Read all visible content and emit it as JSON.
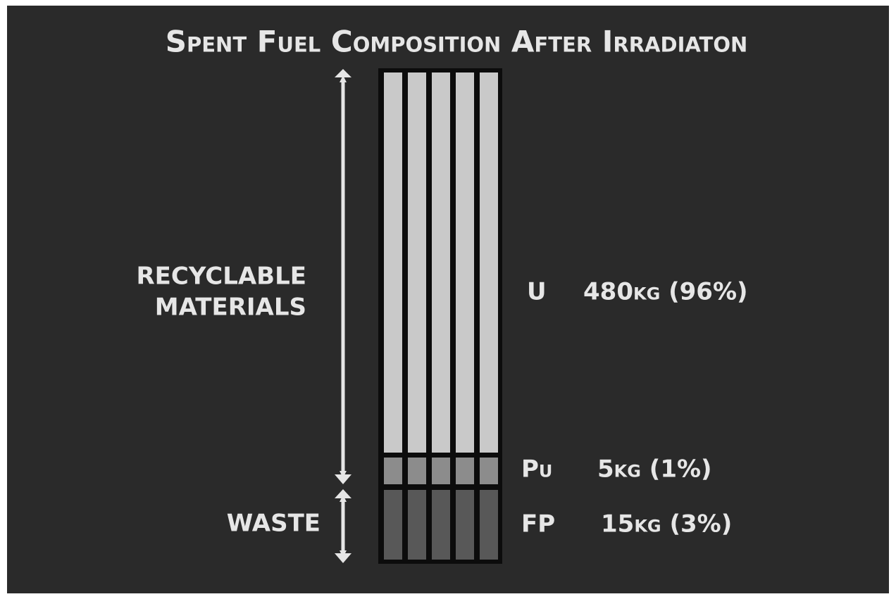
{
  "title": "Spent Fuel Composition After Irradiaton",
  "groups": [
    {
      "lines": [
        "RECYCLABLE",
        "MATERIALS"
      ]
    },
    {
      "lines": [
        "WASTE"
      ]
    }
  ],
  "materials": [
    {
      "symbol": "U",
      "amount": "480kg (96%)"
    },
    {
      "symbol": "Pu",
      "amount": "5kg (1%)"
    },
    {
      "symbol": "FP",
      "amount": "15kg (3%)"
    }
  ]
}
